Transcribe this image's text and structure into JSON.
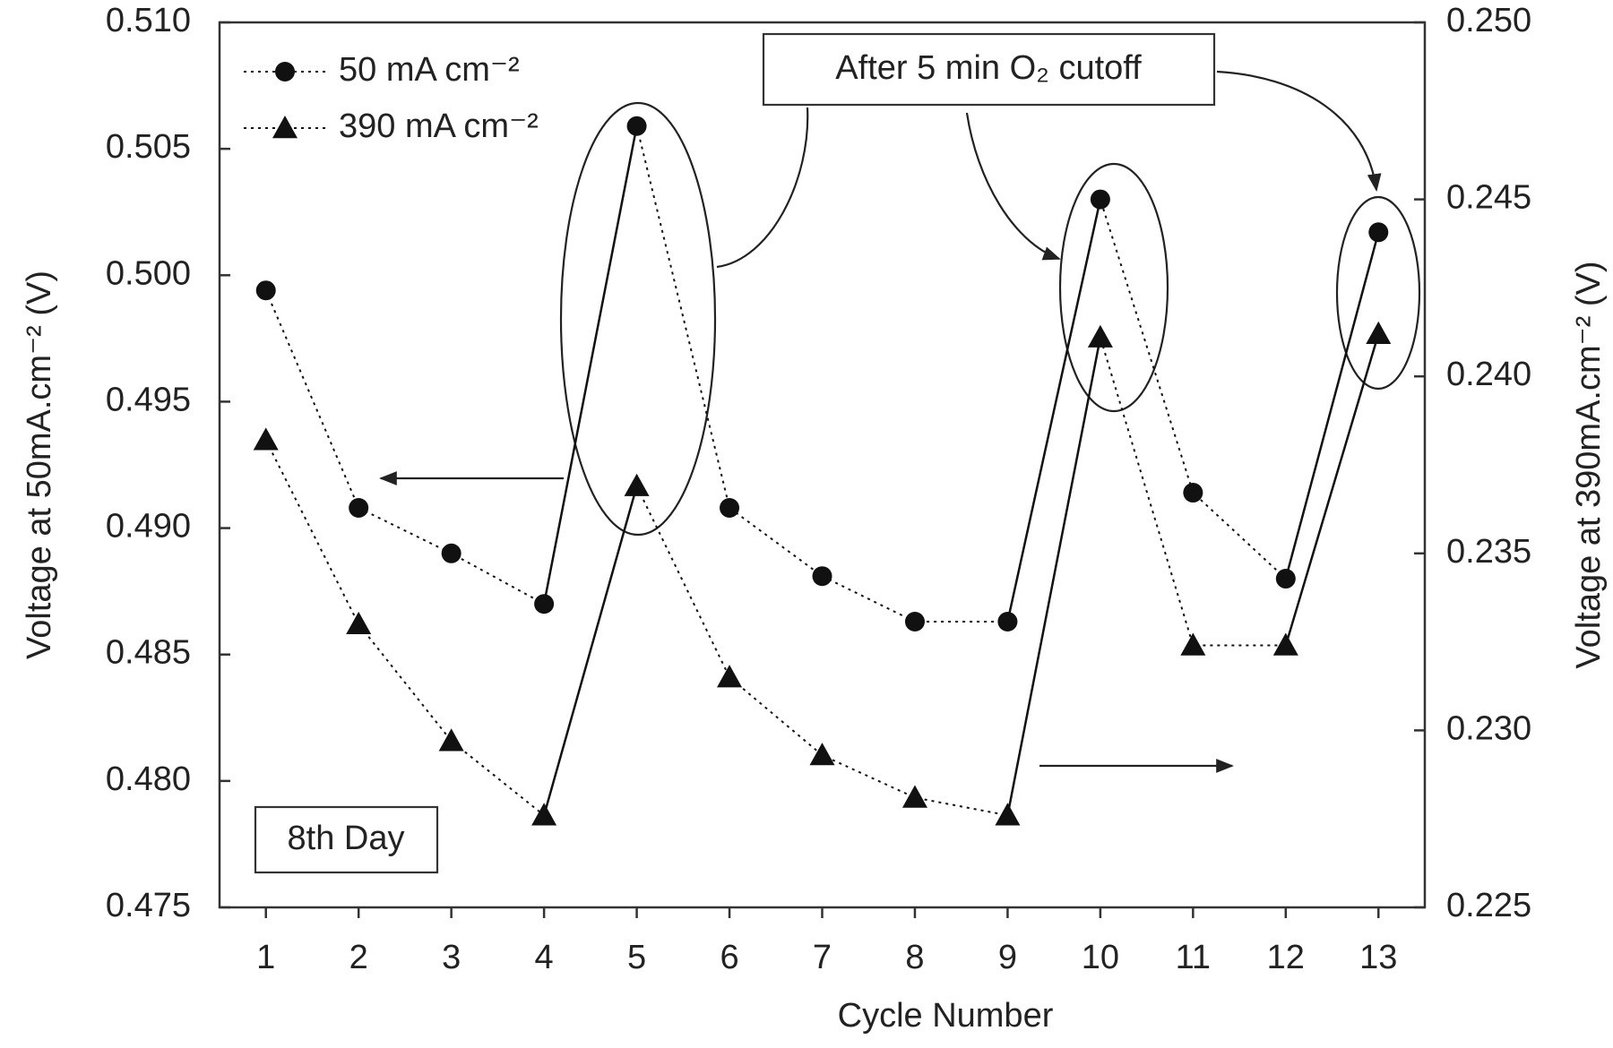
{
  "chart_data": {
    "type": "line",
    "xlabel": "Cycle Number",
    "ylabel": "Voltage at 50mA.cm⁻² (V)",
    "y2label": "Voltage at 390mA.cm⁻² (V)",
    "x": [
      1,
      2,
      3,
      4,
      5,
      6,
      7,
      8,
      9,
      10,
      11,
      12,
      13
    ],
    "xlim": [
      0.5,
      13.5
    ],
    "xticks": [
      1,
      2,
      3,
      4,
      5,
      6,
      7,
      8,
      9,
      10,
      11,
      12,
      13
    ],
    "ylim": [
      0.475,
      0.51
    ],
    "yticks": [
      0.475,
      {
        "value": 0.48,
        "label": "0.480"
      },
      0.485,
      {
        "value": 0.49,
        "label": "0.490"
      },
      0.495,
      {
        "value": 0.5,
        "label": "0.500"
      },
      0.505,
      {
        "value": 0.51,
        "label": "0.510"
      }
    ],
    "y2lim": [
      0.225,
      0.25
    ],
    "y2ticks": [
      0.225,
      {
        "value": 0.23,
        "label": "0.230"
      },
      0.235,
      {
        "value": 0.24,
        "label": "0.240"
      },
      0.245,
      {
        "value": 0.25,
        "label": "0.250"
      }
    ],
    "series": [
      {
        "name": "50 mA cm⁻²",
        "color": "#111111",
        "marker": "circle",
        "values": [
          0.4994,
          0.4908,
          0.489,
          0.487,
          0.5059,
          0.4908,
          0.4881,
          0.4863,
          0.4863,
          0.503,
          0.4914,
          0.488,
          0.5017
        ]
      },
      {
        "name": "390 mA cm⁻²",
        "color": "#111111",
        "marker": "triangle",
        "axis": "y2",
        "values": [
          0.2382,
          0.233,
          0.2297,
          0.2276,
          0.2369,
          0.2315,
          0.2293,
          0.2281,
          0.2276,
          0.2411,
          0.2324,
          0.2324,
          0.2412
        ]
      }
    ],
    "legend": "upper left",
    "annotations": [
      "After 5 min O₂ cutoff",
      "8th Day"
    ]
  }
}
